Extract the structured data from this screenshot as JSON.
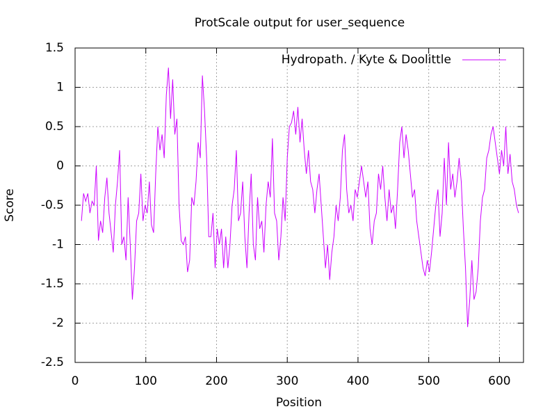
{
  "chart_data": {
    "type": "line",
    "title": "ProtScale output for user_sequence",
    "x_label": "Position",
    "y_label": "Score",
    "x": [
      9,
      12,
      15,
      18,
      21,
      24,
      27,
      30,
      33,
      36,
      39,
      42,
      45,
      48,
      51,
      54,
      57,
      60,
      63,
      66,
      69,
      72,
      75,
      78,
      81,
      84,
      87,
      90,
      93,
      96,
      99,
      102,
      105,
      108,
      111,
      114,
      117,
      120,
      123,
      126,
      129,
      132,
      135,
      138,
      141,
      144,
      147,
      150,
      153,
      156,
      159,
      162,
      165,
      168,
      171,
      174,
      177,
      180,
      183,
      186,
      189,
      192,
      195,
      198,
      201,
      204,
      207,
      210,
      213,
      216,
      219,
      222,
      225,
      228,
      231,
      234,
      237,
      240,
      243,
      246,
      249,
      252,
      255,
      258,
      261,
      264,
      267,
      270,
      273,
      276,
      279,
      282,
      285,
      288,
      291,
      294,
      297,
      300,
      303,
      306,
      309,
      312,
      315,
      318,
      321,
      324,
      327,
      330,
      333,
      336,
      339,
      342,
      345,
      348,
      351,
      354,
      357,
      360,
      363,
      366,
      369,
      372,
      375,
      378,
      381,
      384,
      387,
      390,
      393,
      396,
      399,
      402,
      405,
      408,
      411,
      414,
      417,
      420,
      423,
      426,
      429,
      432,
      435,
      438,
      441,
      444,
      447,
      450,
      453,
      456,
      459,
      462,
      465,
      468,
      471,
      474,
      477,
      480,
      483,
      486,
      489,
      492,
      495,
      498,
      501,
      504,
      507,
      510,
      513,
      516,
      519,
      522,
      525,
      528,
      531,
      534,
      537,
      540,
      543,
      546,
      549,
      552,
      555,
      558,
      561,
      564,
      567,
      570,
      573,
      576,
      579,
      582,
      585,
      588,
      591,
      594,
      597,
      600,
      603,
      606,
      609,
      612,
      615,
      618,
      621,
      624,
      627
    ],
    "series": [
      {
        "name": "Hydropath. / Kyte & Doolittle",
        "color": "#cc00ff",
        "values": [
          -0.7,
          -0.35,
          -0.45,
          -0.35,
          -0.6,
          -0.45,
          -0.5,
          0.0,
          -0.95,
          -0.7,
          -0.85,
          -0.4,
          -0.15,
          -0.6,
          -0.85,
          -1.1,
          -0.5,
          -0.2,
          0.2,
          -1.0,
          -0.9,
          -1.2,
          -0.4,
          -1.0,
          -1.7,
          -1.3,
          -0.7,
          -0.6,
          -0.1,
          -0.7,
          -0.5,
          -0.6,
          -0.2,
          -0.75,
          -0.85,
          -0.1,
          0.5,
          0.2,
          0.4,
          0.1,
          0.9,
          1.25,
          0.6,
          1.1,
          0.4,
          0.6,
          -0.5,
          -0.95,
          -1.0,
          -0.9,
          -1.35,
          -1.2,
          -0.4,
          -0.5,
          -0.2,
          0.3,
          0.1,
          1.15,
          0.7,
          0.1,
          -0.9,
          -0.9,
          -0.6,
          -1.3,
          -0.8,
          -1.0,
          -0.8,
          -1.3,
          -0.9,
          -1.3,
          -1.0,
          -0.5,
          -0.3,
          0.2,
          -0.7,
          -0.6,
          -0.2,
          -0.9,
          -1.3,
          -0.6,
          -0.1,
          -1.0,
          -1.2,
          -0.4,
          -0.8,
          -0.7,
          -1.1,
          -0.5,
          -0.2,
          -0.4,
          0.35,
          -0.6,
          -0.7,
          -1.2,
          -0.9,
          -0.4,
          -0.7,
          0.1,
          0.5,
          0.55,
          0.7,
          0.4,
          0.75,
          0.3,
          0.6,
          0.2,
          -0.1,
          0.2,
          -0.2,
          -0.3,
          -0.6,
          -0.3,
          -0.1,
          -0.5,
          -0.9,
          -1.3,
          -1.0,
          -1.45,
          -1.1,
          -0.9,
          -0.5,
          -0.7,
          -0.4,
          0.2,
          0.4,
          -0.3,
          -0.6,
          -0.5,
          -0.7,
          -0.3,
          -0.4,
          -0.2,
          0.0,
          -0.2,
          -0.4,
          -0.2,
          -0.8,
          -1.0,
          -0.7,
          -0.6,
          -0.1,
          -0.3,
          0.0,
          -0.4,
          -0.7,
          -0.3,
          -0.6,
          -0.5,
          -0.8,
          -0.3,
          0.3,
          0.5,
          0.1,
          0.4,
          0.2,
          -0.1,
          -0.4,
          -0.3,
          -0.7,
          -0.9,
          -1.1,
          -1.3,
          -1.4,
          -1.2,
          -1.35,
          -1.1,
          -0.8,
          -0.5,
          -0.3,
          -0.9,
          -0.6,
          0.1,
          -0.5,
          0.3,
          -0.3,
          -0.1,
          -0.4,
          -0.2,
          0.1,
          -0.2,
          -0.8,
          -1.3,
          -2.05,
          -1.7,
          -1.2,
          -1.7,
          -1.6,
          -1.3,
          -0.7,
          -0.4,
          -0.3,
          0.1,
          0.2,
          0.4,
          0.5,
          0.3,
          0.1,
          -0.1,
          0.2,
          0.0,
          0.5,
          -0.1,
          0.15,
          -0.2,
          -0.3,
          -0.5,
          -0.6
        ]
      }
    ],
    "xlim": [
      0,
      634
    ],
    "ylim": [
      -2.5,
      1.5
    ],
    "xticks": [
      0,
      100,
      200,
      300,
      400,
      500,
      600
    ],
    "yticks": [
      -2.5,
      -2,
      -1.5,
      -1,
      -0.5,
      0,
      0.5,
      1,
      1.5
    ],
    "grid": true,
    "legend": "top-right"
  }
}
